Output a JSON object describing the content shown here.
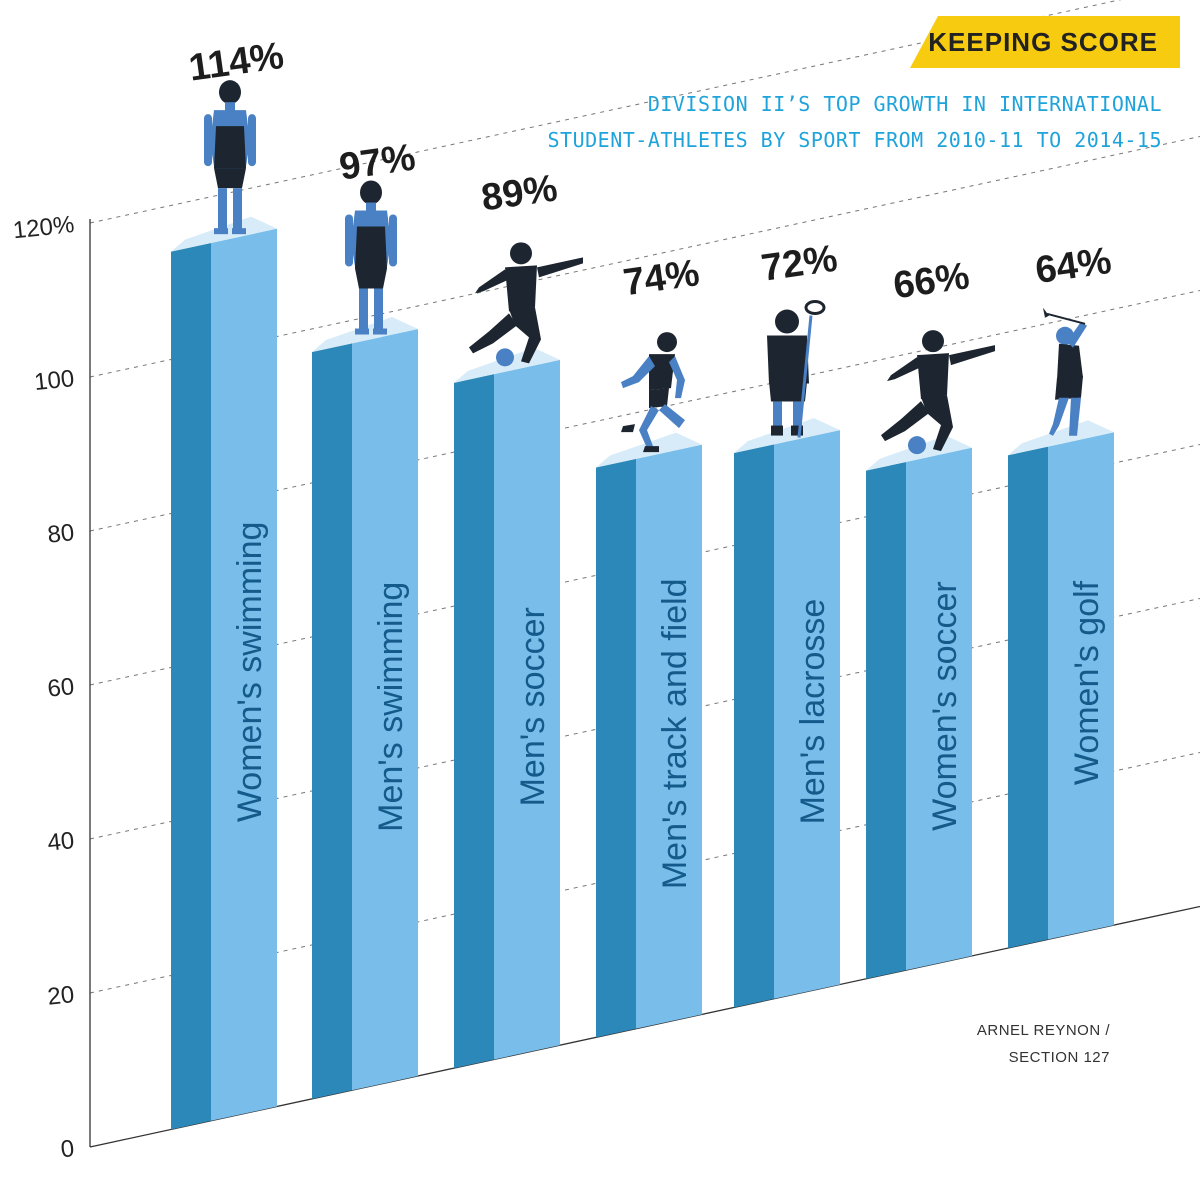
{
  "banner": {
    "text": "KEEPING SCORE"
  },
  "title_line1": "DIVISION II’S TOP GROWTH IN INTERNATIONAL",
  "title_line2": "STUDENT-ATHLETES BY SPORT FROM 2010-11 TO 2014-15",
  "credit_line1": "ARNEL REYNON /",
  "credit_line2": "SECTION 127",
  "colors": {
    "bar_front": "#79beea",
    "bar_side": "#2b88b8",
    "bar_top": "#d7ecf8",
    "bar_text": "#145a8a",
    "figure_dark": "#1d2630",
    "figure_light": "#4a80c4",
    "banner": "#f6cb10",
    "title": "#1fa3db"
  },
  "chart_data": {
    "type": "bar",
    "categories": [
      "Women's swimming",
      "Men's swimming",
      "Men's soccer",
      "Men's track and field",
      "Men's lacrosse",
      "Women's soccer",
      "Women's golf"
    ],
    "values": [
      114,
      97,
      89,
      74,
      72,
      66,
      64
    ],
    "value_labels": [
      "114%",
      "97%",
      "89%",
      "74%",
      "72%",
      "66%",
      "64%"
    ],
    "icons": [
      "swimmer-icon",
      "swimmer-icon",
      "soccer-player-icon",
      "runner-icon",
      "lacrosse-player-icon",
      "soccer-player-icon",
      "golfer-icon"
    ],
    "y_ticks": [
      "0",
      "20",
      "40",
      "60",
      "80",
      "100",
      "120%"
    ],
    "ylim": [
      0,
      120
    ],
    "grid": true
  }
}
